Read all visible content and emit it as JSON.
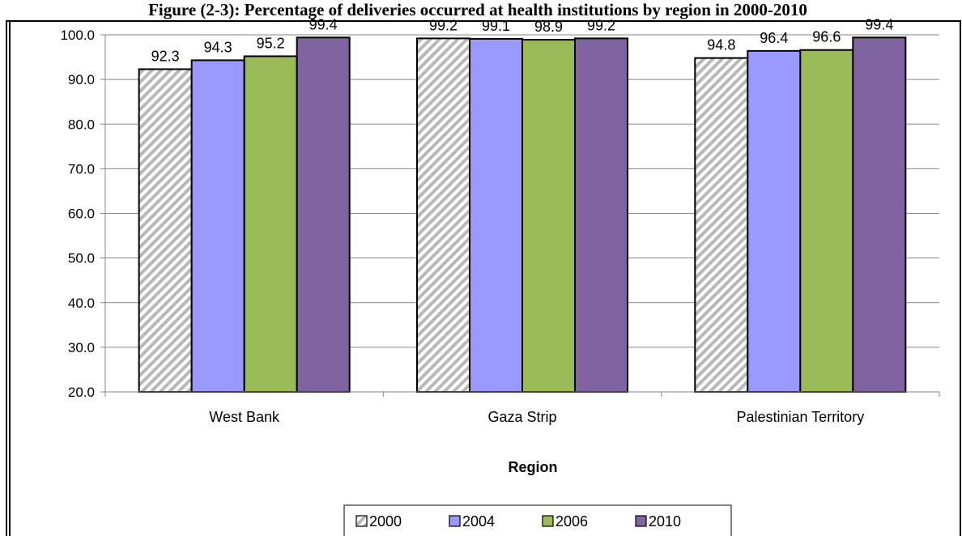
{
  "chart_data": {
    "type": "bar",
    "title": "Figure (2-3): Percentage of deliveries occurred at health institutions by region in 2000-2010",
    "xlabel": "Region",
    "ylabel": "",
    "ylim": [
      20,
      100
    ],
    "yticks": [
      "20.0",
      "30.0",
      "40.0",
      "50.0",
      "60.0",
      "70.0",
      "80.0",
      "90.0",
      "100.0"
    ],
    "grid": true,
    "legend_position": "bottom",
    "categories": [
      "West Bank",
      "Gaza Strip",
      "Palestinian Territory"
    ],
    "series": [
      {
        "name": "2000",
        "values": [
          92.3,
          99.2,
          94.8
        ],
        "labels": [
          "92.3",
          "99.2",
          "94.8"
        ],
        "color": "#c8c8c8",
        "pattern": "hatch"
      },
      {
        "name": "2004",
        "values": [
          94.3,
          99.1,
          96.4
        ],
        "labels": [
          "94.3",
          "99.1",
          "96.4"
        ],
        "color": "#9999ff"
      },
      {
        "name": "2006",
        "values": [
          95.2,
          98.9,
          96.6
        ],
        "labels": [
          "95.2",
          "98.9",
          "96.6"
        ],
        "color": "#9bbb59"
      },
      {
        "name": "2010",
        "values": [
          99.4,
          99.2,
          99.4
        ],
        "labels": [
          "99.4",
          "99.2",
          "99.4"
        ],
        "color": "#8064a2"
      }
    ]
  }
}
